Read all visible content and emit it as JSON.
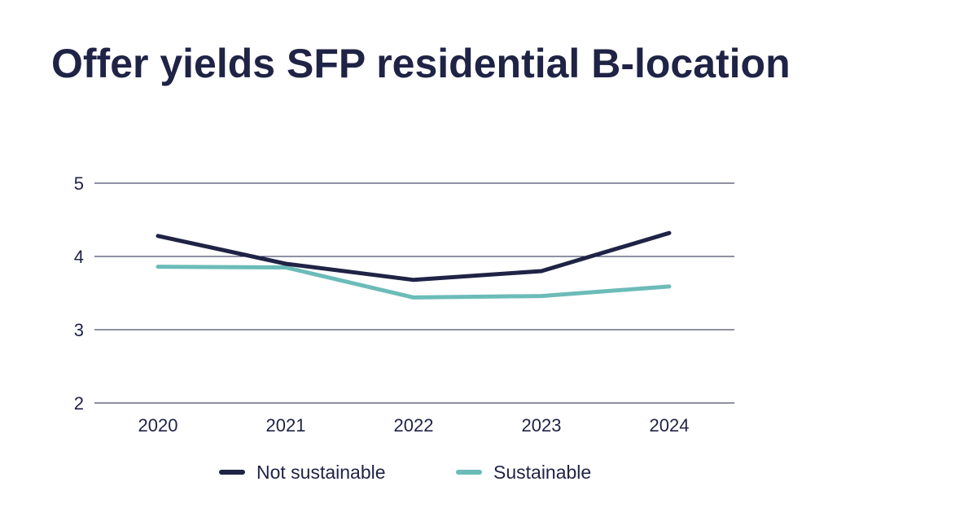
{
  "title": "Offer yields SFP residential B-location",
  "chart_data": {
    "type": "line",
    "title": "Offer yields SFP residential B-location",
    "xlabel": "",
    "ylabel": "",
    "categories": [
      "2020",
      "2021",
      "2022",
      "2023",
      "2024"
    ],
    "y_ticks": [
      "2",
      "3",
      "4",
      "5"
    ],
    "ylim": [
      2,
      5
    ],
    "grid": true,
    "legend_position": "bottom",
    "series": [
      {
        "name": "Not sustainable",
        "color": "#1f2345",
        "values": [
          4.28,
          3.9,
          3.68,
          3.8,
          4.32
        ]
      },
      {
        "name": "Sustainable",
        "color": "#6bbcb8",
        "values": [
          3.86,
          3.85,
          3.44,
          3.46,
          3.59
        ]
      }
    ]
  }
}
